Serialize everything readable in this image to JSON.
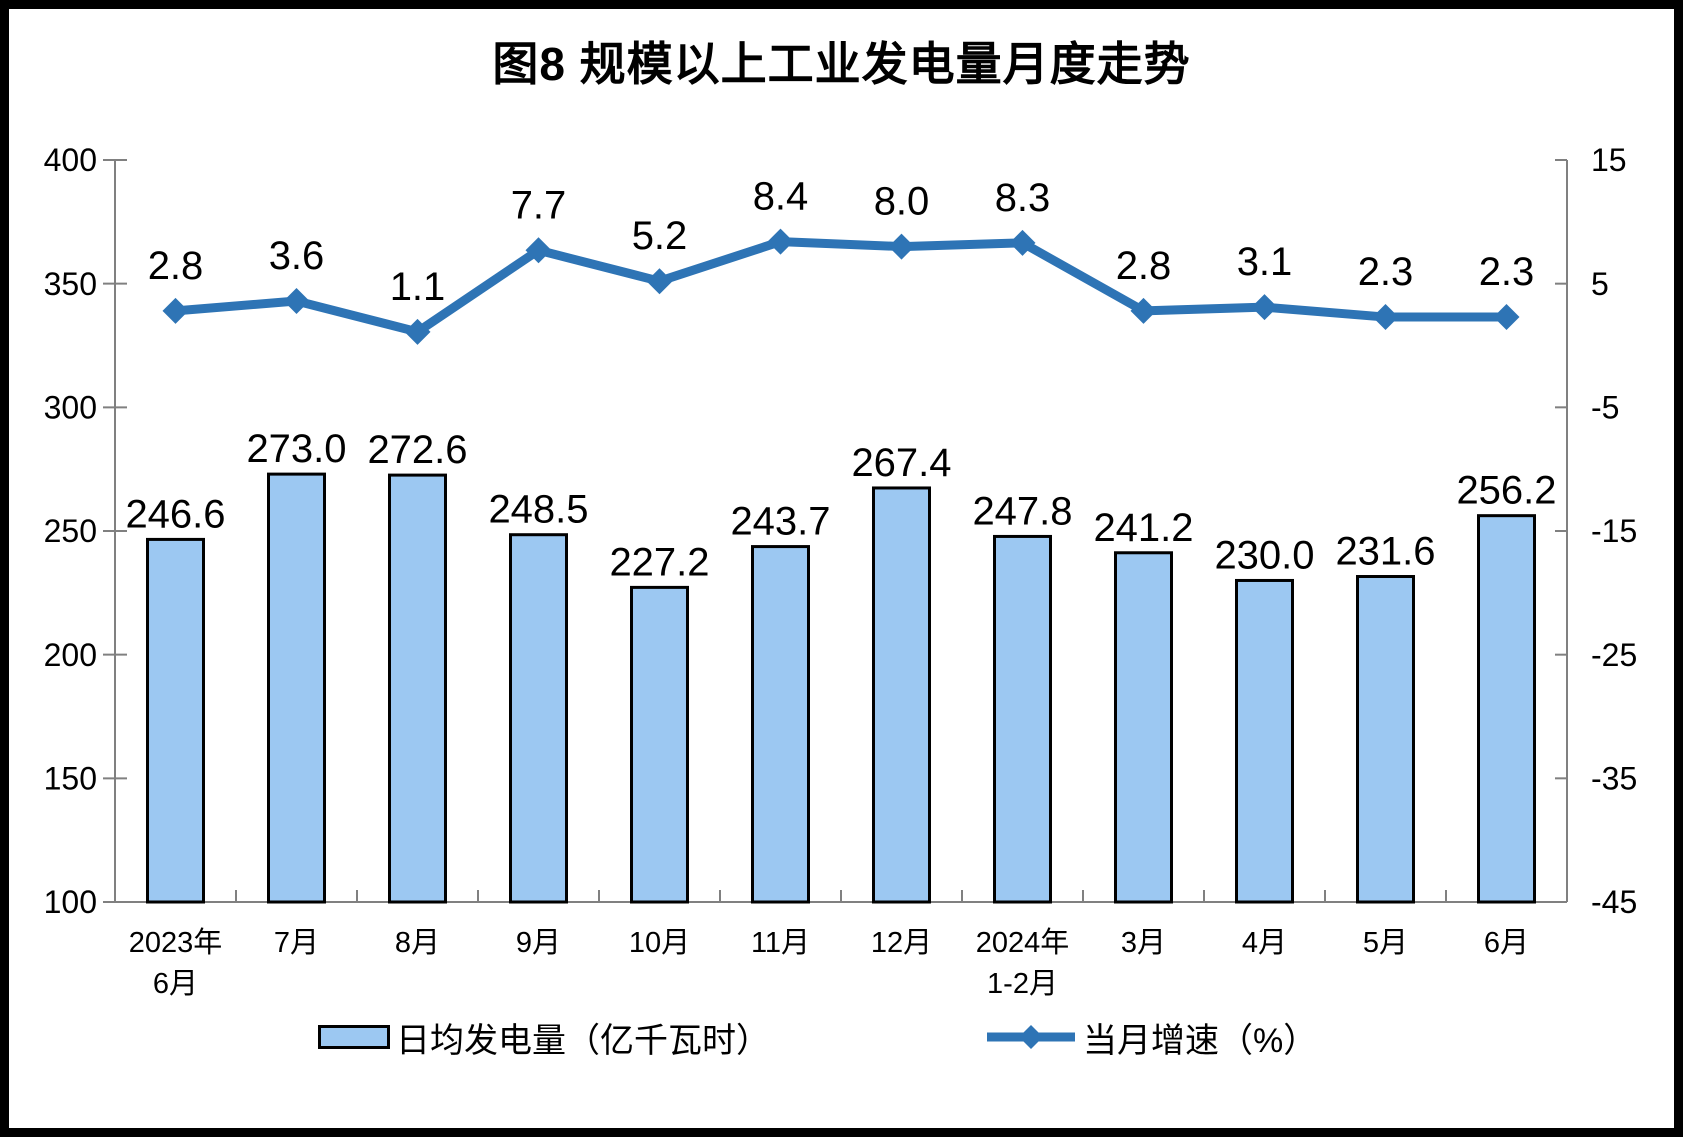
{
  "chart_data": {
    "type": "combo",
    "title": "图8 规模以上工业发电量月度走势",
    "categories": [
      [
        "2023年",
        "6月"
      ],
      [
        "7月"
      ],
      [
        "8月"
      ],
      [
        "9月"
      ],
      [
        "10月"
      ],
      [
        "11月"
      ],
      [
        "12月"
      ],
      [
        "2024年",
        "1-2月"
      ],
      [
        "3月"
      ],
      [
        "4月"
      ],
      [
        "5月"
      ],
      [
        "6月"
      ]
    ],
    "series": [
      {
        "name": "日均发电量（亿千瓦时）",
        "type": "bar",
        "axis": "left",
        "values": [
          246.6,
          273.0,
          272.6,
          248.5,
          227.2,
          243.7,
          267.4,
          247.8,
          241.2,
          230.0,
          231.6,
          256.2
        ],
        "labels": [
          "246.6",
          "273.0",
          "272.6",
          "248.5",
          "227.2",
          "243.7",
          "267.4",
          "247.8",
          "241.2",
          "230.0",
          "231.6",
          "256.2"
        ],
        "fill": "#9CC8F2",
        "stroke": "#000000"
      },
      {
        "name": "当月增速（%）",
        "type": "line",
        "axis": "right",
        "values": [
          2.8,
          3.6,
          1.1,
          7.7,
          5.2,
          8.4,
          8.0,
          8.3,
          2.8,
          3.1,
          2.3,
          2.3
        ],
        "labels": [
          "2.8",
          "3.6",
          "1.1",
          "7.7",
          "5.2",
          "8.4",
          "8.0",
          "8.3",
          "2.8",
          "3.1",
          "2.3",
          "2.3"
        ],
        "color": "#2E74B5",
        "marker": "diamond"
      }
    ],
    "left_axis": {
      "min": 100,
      "max": 400,
      "step": 50,
      "ticks": [
        "100",
        "150",
        "200",
        "250",
        "300",
        "350",
        "400"
      ]
    },
    "right_axis": {
      "min": -45,
      "max": 15,
      "step": 10,
      "ticks": [
        "-45",
        "-35",
        "-25",
        "-15",
        "-5",
        "5",
        "15"
      ]
    },
    "legend_position": "bottom",
    "grid": false,
    "axis_color": "#808080",
    "label_color": "#000000",
    "frame_color": "#000000"
  }
}
